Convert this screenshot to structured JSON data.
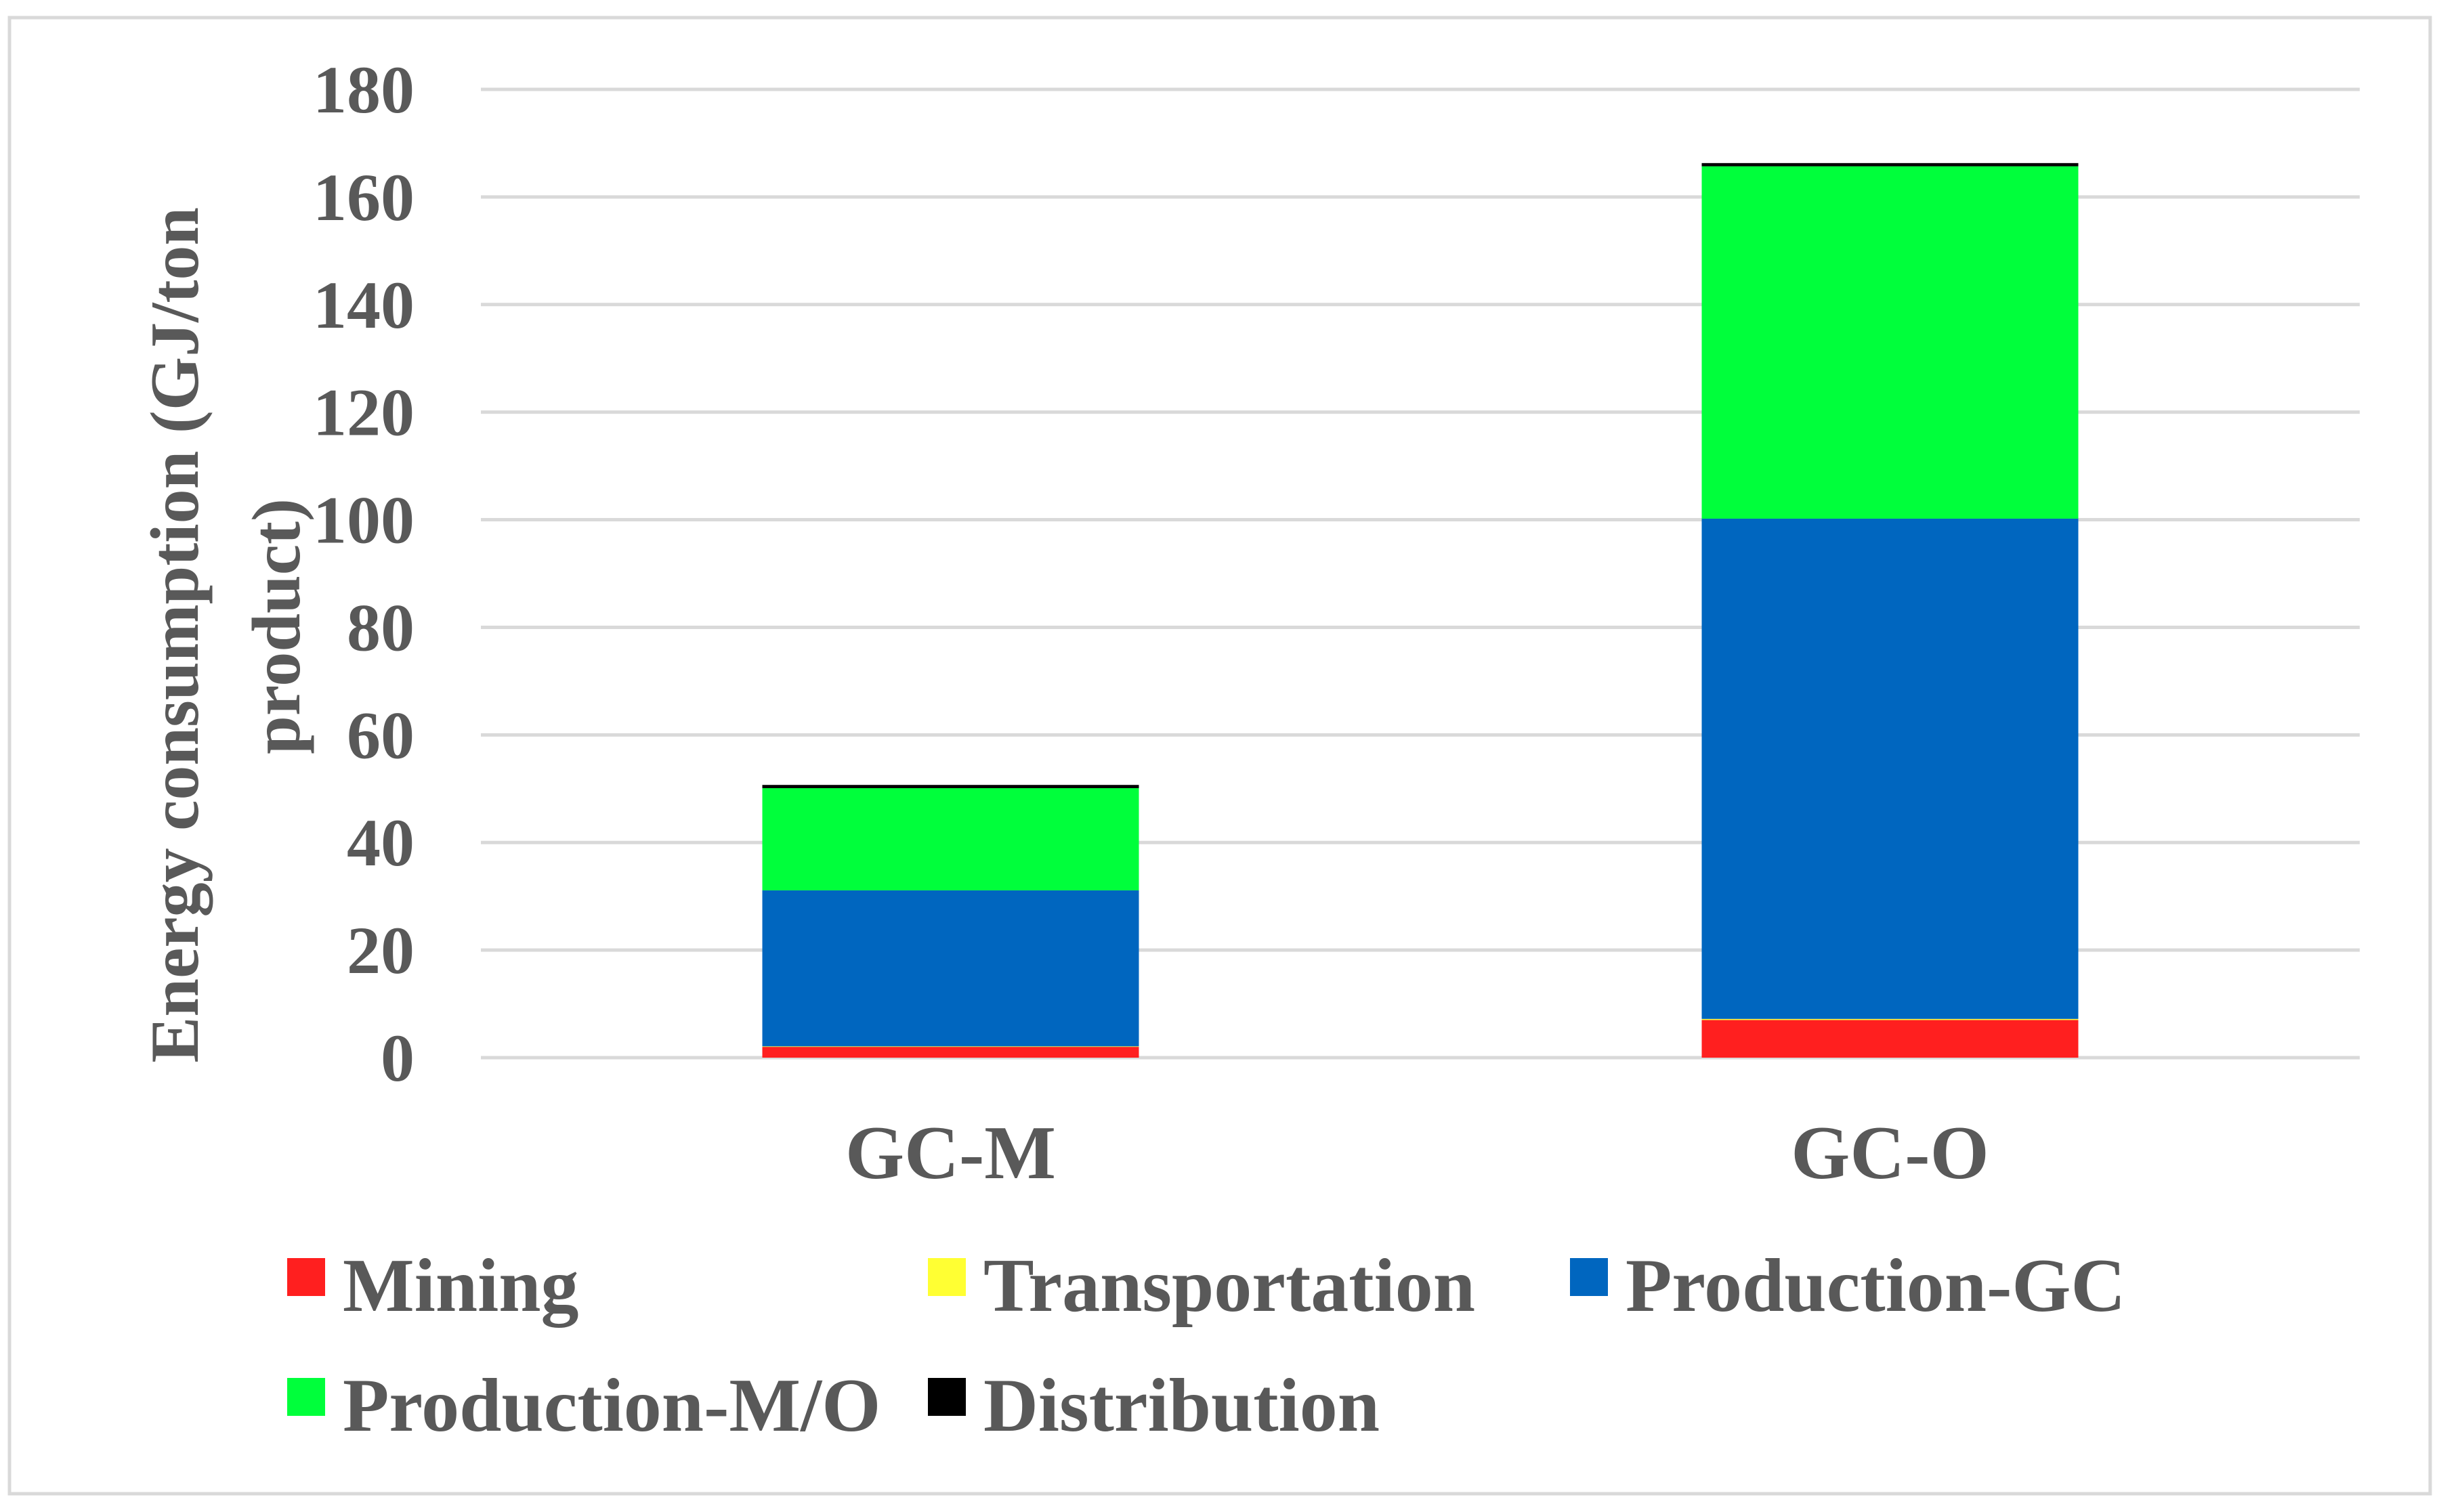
{
  "chart_data": {
    "type": "bar",
    "stacked": true,
    "title": "",
    "xlabel": "",
    "ylabel": "Energy consumption (GJ/ton product)",
    "ylabel_lines": [
      "Energy consumption (GJ/ton",
      "product)"
    ],
    "ylim": [
      0,
      180
    ],
    "yticks": [
      0,
      20,
      40,
      60,
      80,
      100,
      120,
      140,
      160,
      180
    ],
    "grid": true,
    "legend_position": "bottom",
    "categories": [
      "GC-M",
      "GC-O"
    ],
    "series": [
      {
        "name": "Mining",
        "color": "#ff1f1f",
        "values": [
          2.0,
          7.0
        ]
      },
      {
        "name": "Transportation",
        "color": "#ffff33",
        "values": [
          0.1,
          0.2
        ]
      },
      {
        "name": "Production-GC",
        "color": "#0066bf",
        "values": [
          29.0,
          93.0
        ]
      },
      {
        "name": "Production-M/O",
        "color": "#00ff3b",
        "values": [
          19.0,
          65.5
        ]
      },
      {
        "name": "Distribution",
        "color": "#000000",
        "values": [
          0.6,
          0.6
        ]
      }
    ]
  }
}
